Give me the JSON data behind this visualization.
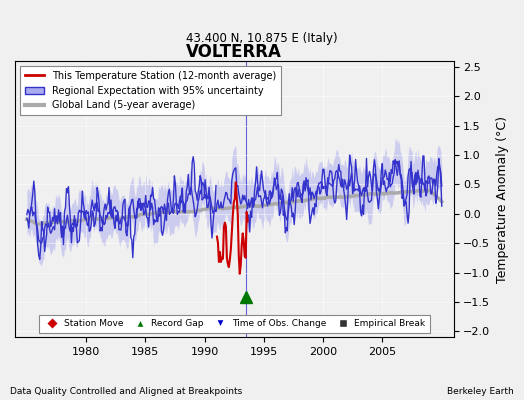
{
  "title": "VOLTERRA",
  "subtitle": "43.400 N, 10.875 E (Italy)",
  "ylabel": "Temperature Anomaly (°C)",
  "footer_left": "Data Quality Controlled and Aligned at Breakpoints",
  "footer_right": "Berkeley Earth",
  "xlim": [
    1974,
    2011
  ],
  "ylim": [
    -2.1,
    2.6
  ],
  "yticks": [
    -2,
    -1.5,
    -1,
    -0.5,
    0,
    0.5,
    1,
    1.5,
    2,
    2.5
  ],
  "xticks": [
    1980,
    1985,
    1990,
    1995,
    2000,
    2005
  ],
  "bg_color": "#f0f0f0",
  "plot_bg": "#f0f0f0",
  "seed": 42,
  "time_of_obs_change_x": 1993.5,
  "time_of_obs_change_y": -1.42,
  "legend_labels": [
    "This Temperature Station (12-month average)",
    "Regional Expectation with 95% uncertainty",
    "Global Land (5-year average)"
  ],
  "legend_colors": [
    "#cc0000",
    "#3333cc",
    "#aaaaaa"
  ],
  "uncertainty_color": "#aaaaee",
  "station_move_color": "#cc0000",
  "record_gap_color": "#007700",
  "time_obs_color": "#0000cc",
  "empirical_break_color": "#333333",
  "red_start": 1991.0,
  "red_end": 1993.7
}
